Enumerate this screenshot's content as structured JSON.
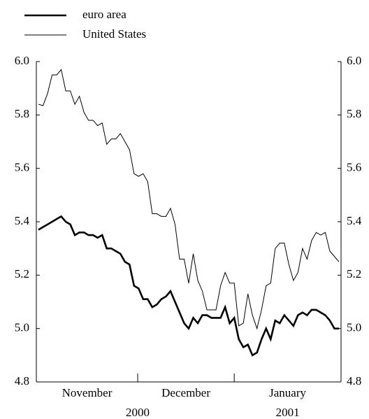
{
  "chart_data": {
    "type": "line",
    "series": [
      {
        "name": "euro area",
        "color": "#000",
        "width": 2.6,
        "values": [
          5.37,
          5.38,
          5.39,
          5.4,
          5.41,
          5.42,
          5.4,
          5.39,
          5.35,
          5.36,
          5.36,
          5.35,
          5.35,
          5.34,
          5.35,
          5.3,
          5.3,
          5.29,
          5.28,
          5.25,
          5.24,
          5.16,
          5.15,
          5.11,
          5.11,
          5.08,
          5.09,
          5.11,
          5.12,
          5.14,
          5.1,
          5.06,
          5.02,
          5.0,
          5.04,
          5.02,
          5.05,
          5.05,
          5.04,
          5.04,
          5.04,
          5.08,
          5.02,
          5.04,
          4.96,
          4.93,
          4.94,
          4.9,
          4.91,
          4.96,
          5.0,
          4.96,
          5.03,
          5.02,
          5.05,
          5.03,
          5.01,
          5.05,
          5.06,
          5.05,
          5.07,
          5.07,
          5.06,
          5.05,
          5.03,
          5.0,
          5.0
        ]
      },
      {
        "name": "United States",
        "color": "#000",
        "width": 1,
        "values": [
          5.84,
          5.835,
          5.88,
          5.95,
          5.95,
          5.97,
          5.89,
          5.89,
          5.84,
          5.87,
          5.81,
          5.78,
          5.78,
          5.76,
          5.77,
          5.69,
          5.71,
          5.71,
          5.73,
          5.7,
          5.67,
          5.58,
          5.57,
          5.58,
          5.55,
          5.43,
          5.43,
          5.42,
          5.42,
          5.45,
          5.39,
          5.26,
          5.26,
          5.17,
          5.28,
          5.18,
          5.14,
          5.07,
          5.07,
          5.07,
          5.16,
          5.21,
          5.17,
          5.17,
          5.01,
          5.02,
          5.13,
          5.05,
          5.0,
          5.07,
          5.16,
          5.17,
          5.3,
          5.32,
          5.32,
          5.24,
          5.18,
          5.21,
          5.3,
          5.26,
          5.33,
          5.36,
          5.35,
          5.36,
          5.29,
          5.27,
          5.25
        ]
      }
    ],
    "months": [
      "November",
      "December",
      "January"
    ],
    "years": [
      "2000",
      "2001"
    ],
    "xlim": [
      0,
      66
    ],
    "xticks": [
      21.8,
      43
    ],
    "ylim": [
      4.8,
      6.0
    ],
    "yticks": [
      {
        "value": 4.8,
        "label": "4.8"
      },
      {
        "value": 5.0,
        "label": "5.0"
      },
      {
        "value": 5.2,
        "label": "5.2"
      },
      {
        "value": 5.4,
        "label": "5.4"
      },
      {
        "value": 5.6,
        "label": "5.6"
      },
      {
        "value": 5.8,
        "label": "5.8"
      },
      {
        "value": 6.0,
        "label": "6.0"
      }
    ]
  }
}
